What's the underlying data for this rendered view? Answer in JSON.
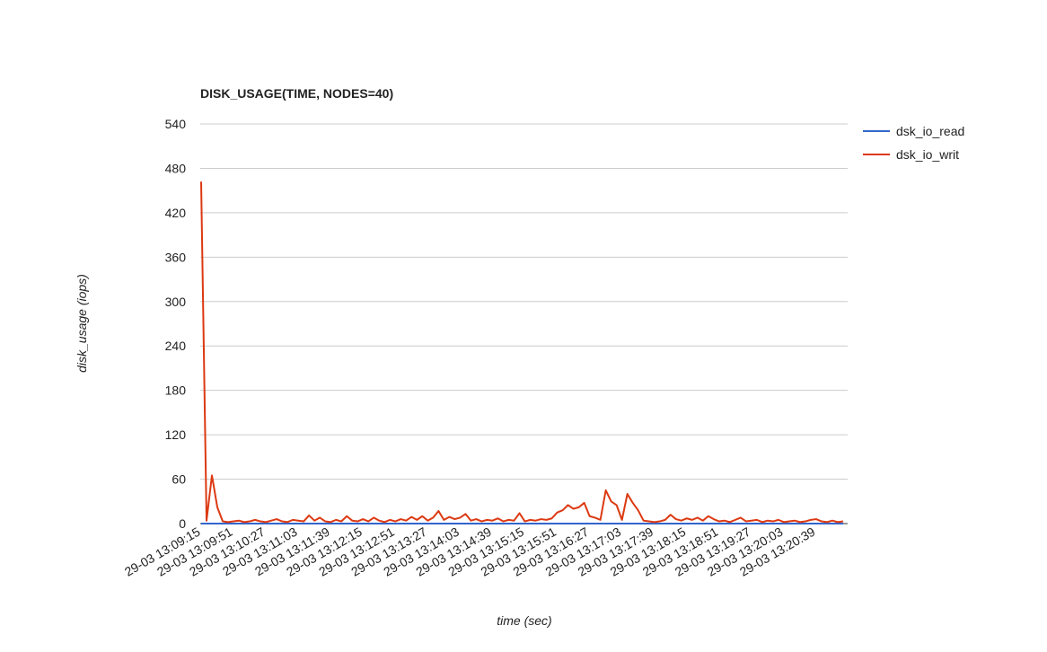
{
  "chart_data": {
    "type": "line",
    "title": "DISK_USAGE(TIME, NODES=40)",
    "x_label": "time (sec)",
    "y_label": "disk_usage (iops)",
    "categories": [
      "29-03 13:09:15",
      null,
      null,
      null,
      null,
      null,
      "29-03 13:09:51",
      null,
      null,
      null,
      null,
      null,
      "29-03 13:10:27",
      null,
      null,
      null,
      null,
      null,
      "29-03 13:11:03",
      null,
      null,
      null,
      null,
      null,
      "29-03 13:11:39",
      null,
      null,
      null,
      null,
      null,
      "29-03 13:12:15",
      null,
      null,
      null,
      null,
      null,
      "29-03 13:12:51",
      null,
      null,
      null,
      null,
      null,
      "29-03 13:13:27",
      null,
      null,
      null,
      null,
      null,
      "29-03 13:14:03",
      null,
      null,
      null,
      null,
      null,
      "29-03 13:14:39",
      null,
      null,
      null,
      null,
      null,
      "29-03 13:15:15",
      null,
      null,
      null,
      null,
      null,
      "29-03 13:15:51",
      null,
      null,
      null,
      null,
      null,
      "29-03 13:16:27",
      null,
      null,
      null,
      null,
      null,
      "29-03 13:17:03",
      null,
      null,
      null,
      null,
      null,
      "29-03 13:17:39",
      null,
      null,
      null,
      null,
      null,
      "29-03 13:18:15",
      null,
      null,
      null,
      null,
      null,
      "29-03 13:18:51",
      null,
      null,
      null,
      null,
      null,
      "29-03 13:19:27",
      null,
      null,
      null,
      null,
      null,
      "29-03 13:20:03",
      null,
      null,
      null,
      null,
      null,
      "29-03 13:20:39",
      null,
      null,
      null,
      null,
      null
    ],
    "series": [
      {
        "name": "dsk_io_read",
        "color": "#3366cc",
        "values": [
          0,
          0,
          0,
          0,
          0,
          0,
          0,
          0,
          0,
          0,
          0,
          0,
          0,
          0,
          0,
          0,
          0,
          0,
          0,
          0,
          0,
          0,
          0,
          0,
          0,
          0,
          0,
          0,
          0,
          0,
          0,
          0,
          0,
          0,
          0,
          0,
          0,
          0,
          0,
          0,
          0,
          0,
          0,
          0,
          0,
          0,
          0,
          0,
          0,
          0,
          0,
          0,
          0,
          0,
          0,
          0,
          0,
          0,
          0,
          0,
          0,
          0,
          0,
          0,
          0,
          0,
          0,
          0,
          0,
          0,
          0,
          0,
          0,
          0,
          0,
          0,
          0,
          0,
          0,
          0,
          0,
          0,
          0,
          0,
          0,
          0,
          0,
          0,
          0,
          0,
          0,
          0,
          0,
          0,
          0,
          0,
          0,
          0,
          0,
          0,
          0,
          0,
          0,
          0,
          0,
          0,
          0,
          0,
          0,
          0,
          0,
          0,
          0,
          0,
          0,
          0,
          0,
          0,
          0,
          0
        ]
      },
      {
        "name": "dsk_io_writ",
        "color": "#dc3912",
        "values": [
          462,
          4,
          65,
          22,
          3,
          2,
          3,
          4,
          2,
          3,
          5,
          3,
          2,
          4,
          6,
          3,
          2,
          5,
          4,
          3,
          11,
          4,
          8,
          3,
          2,
          5,
          3,
          10,
          4,
          3,
          6,
          3,
          8,
          4,
          2,
          5,
          3,
          6,
          4,
          9,
          5,
          10,
          4,
          8,
          17,
          5,
          9,
          6,
          8,
          13,
          4,
          6,
          3,
          5,
          4,
          7,
          3,
          5,
          4,
          14,
          3,
          5,
          4,
          6,
          5,
          7,
          15,
          18,
          25,
          20,
          22,
          28,
          10,
          8,
          5,
          45,
          30,
          25,
          5,
          40,
          28,
          18,
          4,
          3,
          2,
          3,
          5,
          12,
          6,
          4,
          7,
          5,
          8,
          4,
          10,
          6,
          3,
          4,
          2,
          5,
          8,
          3,
          4,
          5,
          2,
          4,
          3,
          5,
          2,
          3,
          4,
          2,
          3,
          5,
          6,
          3,
          2,
          4,
          2,
          3
        ]
      }
    ],
    "ylim": [
      0,
      540
    ],
    "yticks": [
      0,
      60,
      120,
      180,
      240,
      300,
      360,
      420,
      480,
      540
    ],
    "grid": true,
    "legend": "right"
  }
}
